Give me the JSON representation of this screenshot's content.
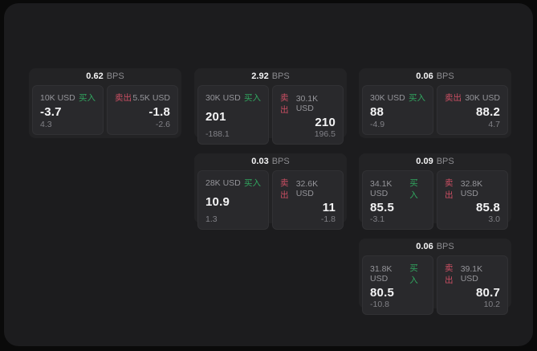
{
  "labels": {
    "buy": "买入",
    "sell": "卖出",
    "bps_unit": "BPS"
  },
  "colors": {
    "buy": "#31a65f",
    "sell": "#cc4f63",
    "panel_bg": "#1c1c1e",
    "card_bg": "#232325",
    "tile_bg": "#29292c"
  },
  "cards": [
    {
      "bps": "0.62",
      "buy": {
        "amount": "10K USD",
        "price": "-3.7",
        "delta": "4.3"
      },
      "sell": {
        "amount": "5.5K USD",
        "price": "-1.8",
        "delta": "-2.6"
      }
    },
    {
      "bps": "2.92",
      "buy": {
        "amount": "30K USD",
        "price": "201",
        "delta": "-188.1"
      },
      "sell": {
        "amount": "30.1K USD",
        "price": "210",
        "delta": "196.5"
      }
    },
    {
      "bps": "0.06",
      "buy": {
        "amount": "30K USD",
        "price": "88",
        "delta": "-4.9"
      },
      "sell": {
        "amount": "30K USD",
        "price": "88.2",
        "delta": "4.7"
      }
    },
    {
      "bps": "0.03",
      "buy": {
        "amount": "28K USD",
        "price": "10.9",
        "delta": "1.3"
      },
      "sell": {
        "amount": "32.6K USD",
        "price": "11",
        "delta": "-1.8"
      }
    },
    {
      "bps": "0.09",
      "buy": {
        "amount": "34.1K USD",
        "price": "85.5",
        "delta": "-3.1"
      },
      "sell": {
        "amount": "32.8K USD",
        "price": "85.8",
        "delta": "3.0"
      }
    },
    {
      "bps": "0.06",
      "buy": {
        "amount": "31.8K USD",
        "price": "80.5",
        "delta": "-10.8"
      },
      "sell": {
        "amount": "39.1K USD",
        "price": "80.7",
        "delta": "10.2"
      }
    }
  ]
}
